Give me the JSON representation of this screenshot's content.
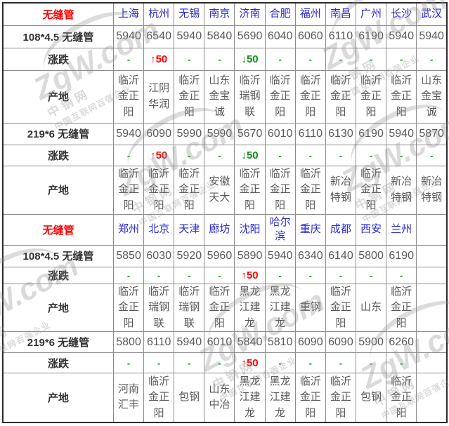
{
  "watermark": {
    "brand": "ZgW.com",
    "site_name": "中钢网",
    "slogan": "中国互联网百强企业"
  },
  "table": {
    "sections": [
      {
        "header_label": "无缝管",
        "cities": [
          "上海",
          "杭州",
          "无锡",
          "南京",
          "济南",
          "合肥",
          "福州",
          "南昌",
          "广州",
          "长沙",
          "武汉"
        ],
        "rows": [
          {
            "label": "108*4.5 无缝管",
            "type": "price",
            "values": [
              "5940",
              "6540",
              "5940",
              "5840",
              "5690",
              "6040",
              "6060",
              "6110",
              "6190",
              "5940",
              "5940"
            ]
          },
          {
            "label": "涨跌",
            "type": "change",
            "values": [
              "-",
              "↑50",
              "-",
              "-",
              "↓50",
              "-",
              "-",
              "-",
              "-",
              "-",
              "-"
            ]
          },
          {
            "label": "产地",
            "type": "origin",
            "values": [
              "临沂金正阳",
              "江阴华润",
              "临沂金正阳",
              "山东金宝诚",
              "临沂瑞钢联",
              "临沂金正阳",
              "临沂金正阳",
              "临沂金正阳",
              "临沂金正阳",
              "临沂金正阳",
              "山东金宝诚"
            ]
          },
          {
            "label": "219*6 无缝管",
            "type": "price",
            "values": [
              "5940",
              "6090",
              "5990",
              "5990",
              "5670",
              "6010",
              "6110",
              "6130",
              "6190",
              "5940",
              "5870"
            ]
          },
          {
            "label": "涨跌",
            "type": "change",
            "values": [
              "-",
              "↑50",
              "-",
              "-",
              "↓50",
              "-",
              "-",
              "-",
              "-",
              "-",
              "-"
            ]
          },
          {
            "label": "产地",
            "type": "origin",
            "values": [
              "临沂金正阳",
              "临沂金正阳",
              "临沂金正阳",
              "安徽天大",
              "临沂金正阳",
              "临沂金正阳",
              "临沂金正阳",
              "新冶特钢",
              "临沂金正阳",
              "新冶特钢",
              "新冶特钢"
            ]
          }
        ]
      },
      {
        "header_label": "无缝管",
        "cities": [
          "郑州",
          "北京",
          "天津",
          "廊坊",
          "沈阳",
          "哈尔滨",
          "重庆",
          "成都",
          "西安",
          "兰州",
          ""
        ],
        "rows": [
          {
            "label": "108*4.5 无缝管",
            "type": "price",
            "values": [
              "5850",
              "6030",
              "5920",
              "5960",
              "5890",
              "5940",
              "6340",
              "6140",
              "5800",
              "6190",
              ""
            ]
          },
          {
            "label": "涨跌",
            "type": "change",
            "values": [
              "-",
              "-",
              "-",
              "-",
              "↑50",
              "-",
              "-",
              "-",
              "-",
              "-",
              ""
            ]
          },
          {
            "label": "产地",
            "type": "origin",
            "values": [
              "临沂金正阳",
              "临沂瑞钢联",
              "临沂瑞钢联",
              "临沂金正阳",
              "黑龙江建龙",
              "黑龙江建龙",
              "重钢",
              "临沂金正阳",
              "山东",
              "临沂金正阳",
              ""
            ]
          },
          {
            "label": "219*6 无缝管",
            "type": "price",
            "values": [
              "5800",
              "6110",
              "5940",
              "6010",
              "5840",
              "5810",
              "6090",
              "6090",
              "5900",
              "6260",
              ""
            ]
          },
          {
            "label": "涨跌",
            "type": "change",
            "values": [
              "-",
              "-",
              "-",
              "-",
              "↑50",
              "-",
              "-",
              "-",
              "-",
              "-",
              ""
            ]
          },
          {
            "label": "产地",
            "type": "origin",
            "values": [
              "河南汇丰",
              "临沂金正阳",
              "包钢",
              "山东中冶",
              "黑龙江建龙",
              "黑龙江建龙",
              "临沂金正阳",
              "临沂金正阳",
              "包钢",
              "临沂金正阳",
              ""
            ]
          }
        ]
      }
    ]
  }
}
